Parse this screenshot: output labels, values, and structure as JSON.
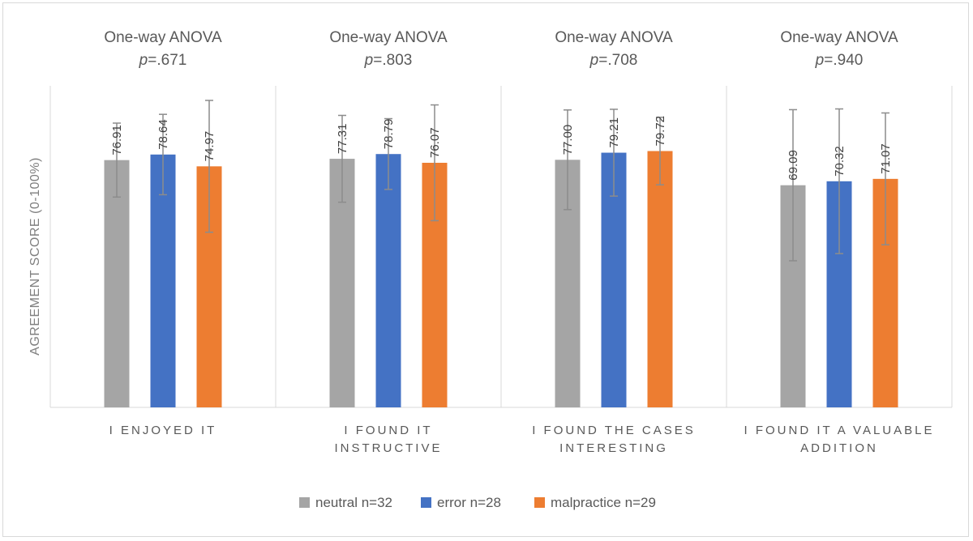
{
  "chart_data": {
    "type": "bar",
    "ylabel": "AGREEMENT SCORE (0-100%)",
    "ylim": [
      0,
      100
    ],
    "grid": false,
    "legend_position": "bottom",
    "categories": [
      "I ENJOYED IT",
      "I FOUND IT INSTRUCTIVE",
      "I FOUND THE CASES INTERESTING",
      "I FOUND IT A VALUABLE ADDITION"
    ],
    "category_lines": [
      [
        "I ENJOYED IT"
      ],
      [
        "I FOUND IT",
        "INSTRUCTIVE"
      ],
      [
        "I FOUND THE CASES",
        "INTERESTING"
      ],
      [
        "I FOUND IT A VALUABLE",
        "ADDITION"
      ]
    ],
    "panel_titles": [
      {
        "test": "One-way ANOVA",
        "p_label": "p",
        "p_value": "=.671"
      },
      {
        "test": "One-way ANOVA",
        "p_label": "p",
        "p_value": "=.803"
      },
      {
        "test": "One-way ANOVA",
        "p_label": "p",
        "p_value": "=.708"
      },
      {
        "test": "One-way ANOVA",
        "p_label": "p",
        "p_value": "=.940"
      }
    ],
    "series": [
      {
        "name": "neutral n=32",
        "color": "#a5a5a5",
        "values": [
          76.91,
          77.31,
          77.0,
          69.09
        ],
        "labels": [
          "76.91",
          "77.31",
          "77.00",
          "69.09"
        ],
        "error": [
          11.5,
          13.5,
          15.5,
          23.5
        ]
      },
      {
        "name": "error n=28",
        "color": "#4472c4",
        "values": [
          78.64,
          78.79,
          79.21,
          70.32
        ],
        "labels": [
          "78.64",
          "78.79",
          "79.21",
          "70.32"
        ],
        "error": [
          12.5,
          11.0,
          13.5,
          22.5
        ]
      },
      {
        "name": "malpractice n=29",
        "color": "#ed7d31",
        "values": [
          74.97,
          76.07,
          79.72,
          71.07
        ],
        "labels": [
          "74.97",
          "76.07",
          "79.72",
          "71.07"
        ],
        "error": [
          20.5,
          18.0,
          10.5,
          20.5
        ]
      }
    ]
  }
}
